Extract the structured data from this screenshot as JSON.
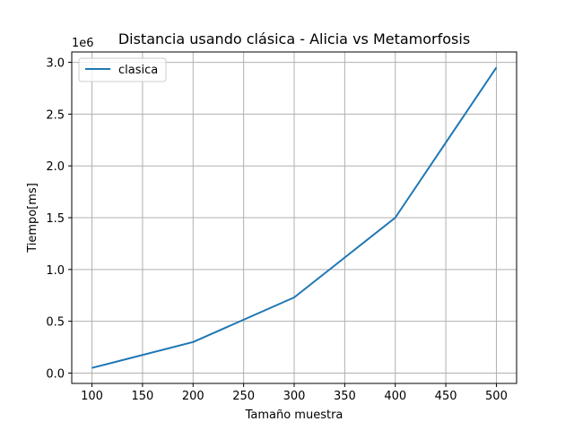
{
  "chart_data": {
    "type": "line",
    "title": "Distancia usando clásica - Alicia vs Metamorfosis",
    "xlabel": "Tamaño muestra",
    "ylabel": "Tiempo[ms]",
    "y_offset_label": "1e6",
    "grid": true,
    "legend_position": "top-left",
    "xlim": [
      80,
      520
    ],
    "ylim": [
      -0.1,
      3.1
    ],
    "x_ticks": [
      100,
      150,
      200,
      250,
      300,
      350,
      400,
      450,
      500
    ],
    "x_tick_labels": [
      "100",
      "150",
      "200",
      "250",
      "300",
      "350",
      "400",
      "450",
      "500"
    ],
    "y_ticks": [
      0.0,
      0.5,
      1.0,
      1.5,
      2.0,
      2.5,
      3.0
    ],
    "y_tick_labels": [
      "0.0",
      "0.5",
      "1.0",
      "1.5",
      "2.0",
      "2.5",
      "3.0"
    ],
    "series": [
      {
        "name": "clasica",
        "color": "#1f77b4",
        "x": [
          100,
          200,
          300,
          400,
          500
        ],
        "y": [
          0.05,
          0.3,
          0.73,
          1.5,
          2.95
        ]
      }
    ]
  }
}
